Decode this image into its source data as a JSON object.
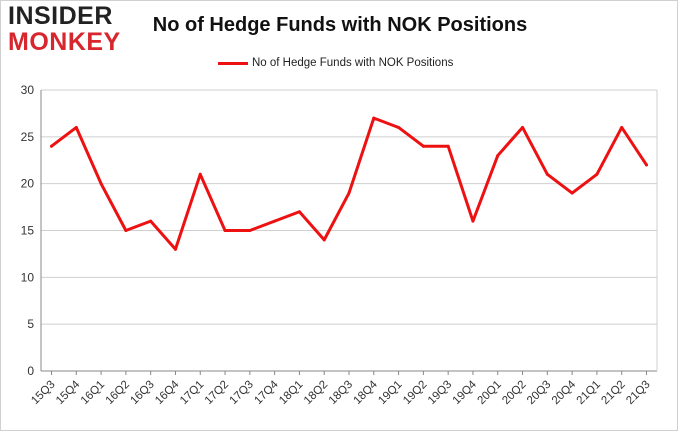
{
  "brand": {
    "line1": "INSIDER",
    "line2": "MONKEY"
  },
  "chart_data": {
    "type": "line",
    "title": "No of Hedge Funds with NOK Positions",
    "xlabel": "",
    "ylabel": "",
    "categories": [
      "15Q3",
      "15Q4",
      "16Q1",
      "16Q2",
      "16Q3",
      "16Q4",
      "17Q1",
      "17Q2",
      "17Q3",
      "17Q4",
      "18Q1",
      "18Q2",
      "18Q3",
      "18Q4",
      "19Q1",
      "19Q2",
      "19Q3",
      "19Q4",
      "20Q1",
      "20Q2",
      "20Q3",
      "20Q4",
      "21Q1",
      "21Q2",
      "21Q3"
    ],
    "series": [
      {
        "name": "No of Hedge Funds with NOK Positions",
        "color": "#ee1111",
        "values": [
          24,
          26,
          20,
          15,
          16,
          13,
          21,
          15,
          15,
          16,
          17,
          14,
          19,
          27,
          26,
          24,
          24,
          16,
          23,
          26,
          21,
          19,
          21,
          26,
          22
        ]
      }
    ],
    "ylim": [
      0,
      30
    ],
    "yticks": [
      0,
      5,
      10,
      15,
      20,
      25,
      30
    ],
    "grid": true,
    "legend_position": "top-center"
  }
}
